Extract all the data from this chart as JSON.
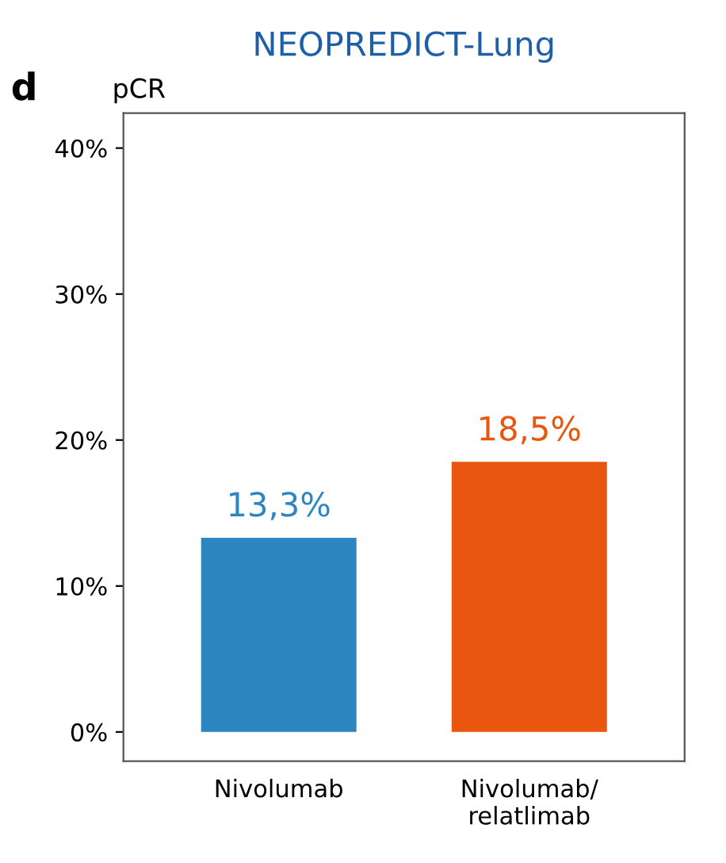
{
  "chart_data": {
    "type": "bar",
    "title": "NEOPREDICT-Lung",
    "ylabel": "pCR",
    "annotations": [
      "d"
    ],
    "categories": [
      "Nivolumab",
      "Nivolumab/\nrelatlimab"
    ],
    "values": [
      13.3,
      18.5
    ],
    "colors": [
      "#2e86c1",
      "#e8560f"
    ],
    "value_labels": [
      "13,3%",
      "18,5%"
    ],
    "ylim": [
      -2,
      42.4
    ],
    "yticks": [
      {
        "value": 0,
        "label": "0%"
      },
      {
        "value": 10,
        "label": "10%"
      },
      {
        "value": 20,
        "label": "20%"
      },
      {
        "value": 30,
        "label": "30%"
      },
      {
        "value": 40,
        "label": "40%"
      }
    ],
    "grid": false
  }
}
